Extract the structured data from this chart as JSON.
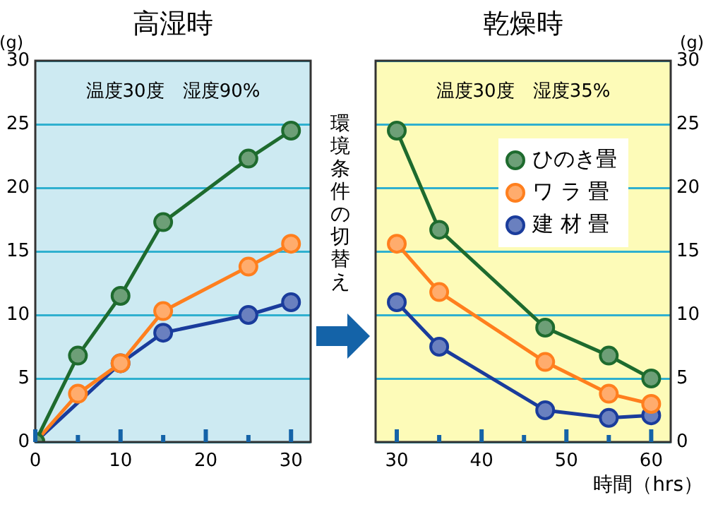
{
  "chart_data": [
    {
      "type": "line",
      "title": "高湿時",
      "ylabel": "(g)",
      "xlim": [
        0,
        32.3
      ],
      "ylim": [
        0,
        30
      ],
      "xticks": [
        0,
        {
          "value": 5,
          "label": null
        },
        10,
        {
          "value": 15,
          "label": null
        },
        20,
        {
          "value": 25,
          "label": null
        },
        30
      ],
      "yticks": [
        0,
        5,
        10,
        15,
        20,
        25,
        30
      ],
      "grid": "y",
      "marker": "circle",
      "line_style": "solid",
      "annotations": [
        "温度30度　湿度90%",
        "環境条件の切替え"
      ],
      "series": [
        {
          "color": "#1e6b2e",
          "x": [
            0,
            5,
            10,
            15,
            25,
            30
          ],
          "values": [
            0,
            6.8,
            11.5,
            17.3,
            22.3,
            24.5
          ]
        },
        {
          "color": "#ff7f1e",
          "x": [
            0,
            5,
            10,
            15,
            25,
            30
          ],
          "values": [
            0,
            3.8,
            6.2,
            10.3,
            13.8,
            15.6
          ]
        },
        {
          "color": "#1a3c9c",
          "x": [
            0,
            10,
            15,
            25,
            30
          ],
          "values": [
            0,
            6.2,
            8.6,
            10.0,
            11.0
          ]
        }
      ]
    },
    {
      "type": "line",
      "title": "乾燥時",
      "ylabel": "(g)",
      "xlabel": "時間（hrs）",
      "xlim": [
        27.5,
        62.3
      ],
      "ylim": [
        0,
        30
      ],
      "xticks": [
        30,
        {
          "value": 35,
          "label": null
        },
        40,
        {
          "value": 45,
          "label": null
        },
        50,
        {
          "value": 55,
          "label": null
        },
        60
      ],
      "yticks": [
        0,
        5,
        10,
        15,
        20,
        25,
        30
      ],
      "grid": "y",
      "marker": "circle",
      "line_style": "solid",
      "legend": "top right",
      "annotations": [
        "温度30度　湿度35%"
      ],
      "series": [
        {
          "name": "ひのき畳",
          "color": "#1e6b2e",
          "x": [
            30,
            35,
            47.5,
            55,
            60
          ],
          "values": [
            24.5,
            16.7,
            9.0,
            6.8,
            5.0
          ]
        },
        {
          "name": "ワ ラ 畳",
          "color": "#ff7f1e",
          "x": [
            30,
            35,
            47.5,
            55,
            60
          ],
          "values": [
            15.6,
            11.8,
            6.3,
            3.8,
            3.0
          ]
        },
        {
          "name": "建 材 畳",
          "color": "#1a3c9c",
          "x": [
            30,
            35,
            47.5,
            55,
            60
          ],
          "values": [
            11.0,
            7.5,
            2.5,
            1.9,
            2.1
          ]
        }
      ]
    }
  ]
}
